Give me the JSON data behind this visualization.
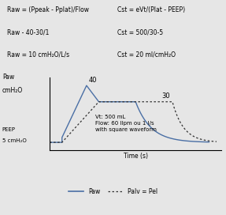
{
  "bg_color": "#e6e6e6",
  "text_box_left": [
    "Raw = (Ppeak - Pplat)/Flow",
    "Raw - 40-30/1",
    "Raw = 10 cmH₂O/L/s"
  ],
  "text_box_right": [
    "Cst = eVt/(Plat - PEEP)",
    "Cst = 500/30-5",
    "Cst = 20 ml/cmH₂O"
  ],
  "ylabel_top": "Paw",
  "ylabel_bottom": "cmH₂O",
  "xlabel": "Time (s)",
  "peep_label_1": "PEEP",
  "peep_label_2": "5 cmH₂O",
  "annotation_40": "40",
  "annotation_30": "30",
  "annotation_text": "Vt: 500 mL\nFlow: 60 llpm ou 1 l/s\nwith square waveform",
  "legend_paw": "Paw",
  "legend_palv": "Palv = Pel",
  "paw_color": "#4a6fa5",
  "palv_color": "#333333",
  "ylim": [
    0,
    45
  ],
  "xlim": [
    0,
    7.0
  ],
  "fontsize_text": 5.5,
  "fontsize_annot": 6.0,
  "fontsize_axis": 5.5,
  "fontsize_legend": 5.5
}
